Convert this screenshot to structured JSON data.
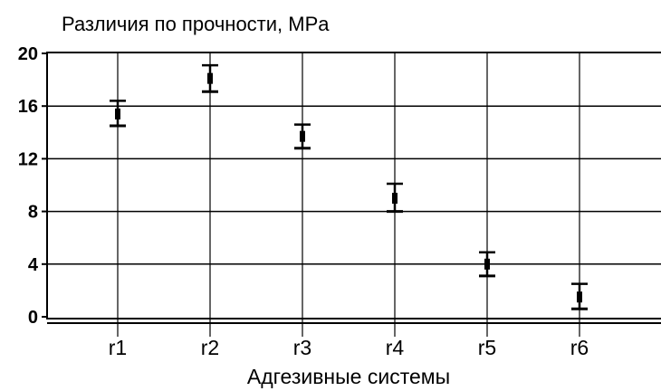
{
  "chart_data": {
    "type": "errorbar",
    "title": "Различия по прочности, MPa",
    "xlabel": "Адгезивные системы",
    "ylabel": "",
    "categories": [
      "r1",
      "r2",
      "r3",
      "r4",
      "r5",
      "r6"
    ],
    "series": [
      {
        "values": [
          15.4,
          18.1,
          13.7,
          9.0,
          4.0,
          1.5
        ],
        "lower": [
          14.5,
          17.1,
          12.8,
          8.0,
          3.1,
          0.6
        ],
        "upper": [
          16.4,
          19.1,
          14.6,
          10.1,
          4.9,
          2.5
        ]
      }
    ],
    "ylim": [
      -0.5,
      20
    ],
    "yticks": [
      0,
      4,
      8,
      12,
      16,
      20
    ],
    "grid": true,
    "colors": {
      "line": "#000000",
      "grid": "#000000",
      "axis": "#000000"
    }
  }
}
